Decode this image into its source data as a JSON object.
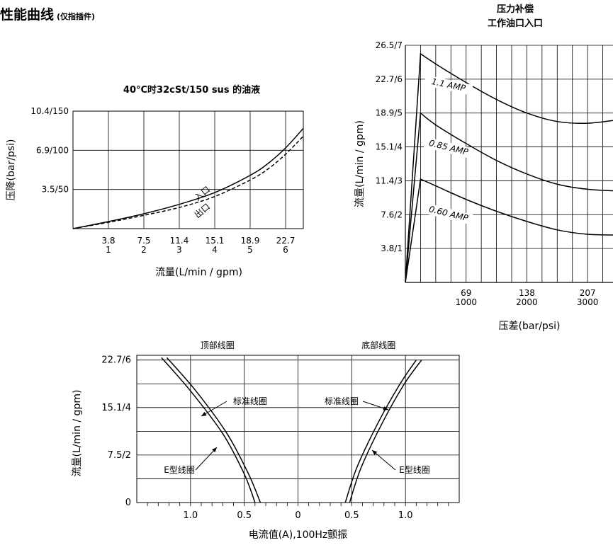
{
  "page": {
    "title": "性能曲线",
    "title_note": "(仅指插件)"
  },
  "chart_data": [
    {
      "id": "pressure-drop",
      "type": "line",
      "title": "40°C时32cSt/150 sus 的油液",
      "xlabel": "流量(L/min / gpm)",
      "ylabel": "压降(bar/psi)",
      "xlim": [
        0,
        6.5
      ],
      "ylim": [
        0,
        150
      ],
      "grid": true,
      "xticks": [
        1,
        2,
        3,
        4,
        5,
        6
      ],
      "xtick_labels": [
        [
          "3.8",
          "1"
        ],
        [
          "7.5",
          "2"
        ],
        [
          "11.4",
          "3"
        ],
        [
          "15.1",
          "4"
        ],
        [
          "18.9",
          "5"
        ],
        [
          "22.7",
          "6"
        ]
      ],
      "yticks": [
        50,
        100,
        150
      ],
      "ytick_labels": [
        "3.5/50",
        "6.9/100",
        "10.4/150"
      ],
      "series": [
        {
          "name": "入口",
          "style": "solid",
          "x": [
            0,
            1,
            2,
            3,
            4,
            5,
            5.5,
            6,
            6.5
          ],
          "y": [
            0,
            9,
            19,
            31,
            46,
            68,
            83,
            103,
            128
          ]
        },
        {
          "name": "出口",
          "style": "dashed",
          "x": [
            0,
            1,
            2,
            3,
            4,
            5,
            5.5,
            6,
            6.5
          ],
          "y": [
            0,
            8,
            17,
            27,
            41,
            62,
            76,
            95,
            118
          ]
        }
      ],
      "annotations": [
        {
          "text": "入口",
          "x": 3.7,
          "y": 42,
          "rotate": -40
        },
        {
          "text": "出口",
          "x": 3.7,
          "y": 20,
          "rotate": -40
        }
      ]
    },
    {
      "id": "pressure-compensation",
      "type": "line",
      "title": [
        "压力补偿",
        "工作油口入口"
      ],
      "xlabel": "压差(bar/psi)",
      "ylabel": "流量(L/min / gpm)",
      "xlim": [
        0,
        3500
      ],
      "ylim": [
        0,
        7
      ],
      "grid": true,
      "xticks": [
        1000,
        2000,
        3000
      ],
      "xtick_labels": [
        [
          "69",
          "1000"
        ],
        [
          "138",
          "2000"
        ],
        [
          "207",
          "3000"
        ]
      ],
      "yticks": [
        1,
        2,
        3,
        4,
        5,
        6,
        7
      ],
      "ytick_labels": [
        "3.8/1",
        "7.6/2",
        "11.4/3",
        "15.1/4",
        "18.9/5",
        "22.7/6",
        "26.5/7"
      ],
      "series": [
        {
          "name": "1.1 AMP",
          "style": "solid",
          "x": [
            0,
            250,
            500,
            1000,
            1500,
            2000,
            2500,
            3000,
            3500
          ],
          "y": [
            0,
            6.75,
            6.45,
            5.9,
            5.4,
            5.0,
            4.75,
            4.7,
            4.8
          ]
        },
        {
          "name": "0.85 AMP",
          "style": "solid",
          "x": [
            0,
            250,
            500,
            1000,
            1500,
            2000,
            2500,
            3000,
            3500
          ],
          "y": [
            0,
            5.0,
            4.65,
            4.1,
            3.6,
            3.2,
            2.9,
            2.75,
            2.7
          ]
        },
        {
          "name": "0.60 AMP",
          "style": "solid",
          "x": [
            0,
            250,
            500,
            1000,
            1500,
            2000,
            2500,
            3000,
            3500
          ],
          "y": [
            0,
            3.05,
            2.85,
            2.45,
            2.1,
            1.8,
            1.55,
            1.42,
            1.4
          ]
        }
      ],
      "annotations": [
        {
          "text": "1.1 AMP",
          "x": 700,
          "y": 5.75,
          "rotate": 12
        },
        {
          "text": "0.85 AMP",
          "x": 700,
          "y": 3.9,
          "rotate": 14
        },
        {
          "text": "0.60 AMP",
          "x": 700,
          "y": 1.95,
          "rotate": 14
        }
      ]
    },
    {
      "id": "flow-vs-current",
      "type": "line",
      "title": "",
      "xlabel": "电流值(A),100Hz颤振",
      "ylabel": "流量(L/min / gpm)",
      "xlim": [
        -1.5,
        1.5
      ],
      "ylim": [
        0,
        6.2
      ],
      "grid": true,
      "xticks": [
        -1.0,
        -0.5,
        0,
        0.5,
        1.0
      ],
      "xtick_labels": [
        "1.0",
        "0.5",
        "0",
        "0.5",
        "1.0"
      ],
      "yticks": [
        0,
        2,
        4,
        6
      ],
      "ytick_labels": [
        "0",
        "7.5/2",
        "15.1/4",
        "22.7/6"
      ],
      "side_labels": [
        "顶部线圈",
        "底部线圈"
      ],
      "series": [
        {
          "name": "标准线圈 (顶部)",
          "x": [
            -1.27,
            -1.0,
            -0.7,
            -0.5,
            -0.4
          ],
          "y": [
            6.1,
            4.7,
            2.9,
            1.2,
            0
          ]
        },
        {
          "name": "E型线圈 (顶部)",
          "x": [
            -1.22,
            -0.95,
            -0.66,
            -0.46,
            -0.35
          ],
          "y": [
            6.1,
            4.7,
            2.9,
            1.2,
            0
          ]
        },
        {
          "name": "标准线圈 (底部)",
          "x": [
            0.44,
            0.55,
            0.75,
            0.95,
            1.1
          ],
          "y": [
            0,
            1.5,
            3.4,
            5.0,
            6.0
          ]
        },
        {
          "name": "E型线圈 (底部)",
          "x": [
            0.48,
            0.59,
            0.79,
            0.99,
            1.15
          ],
          "y": [
            0,
            1.5,
            3.4,
            5.0,
            6.0
          ]
        }
      ],
      "annotations": [
        {
          "text": "标准线圈",
          "side": "top"
        },
        {
          "text": "E型线圈",
          "side": "top"
        },
        {
          "text": "标准线圈",
          "side": "bottom"
        },
        {
          "text": "E型线圈",
          "side": "bottom"
        }
      ]
    }
  ]
}
